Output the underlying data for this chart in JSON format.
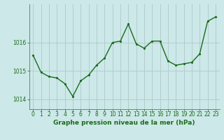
{
  "x": [
    0,
    1,
    2,
    3,
    4,
    5,
    6,
    7,
    8,
    9,
    10,
    11,
    12,
    13,
    14,
    15,
    16,
    17,
    18,
    19,
    20,
    21,
    22,
    23
  ],
  "y": [
    1015.55,
    1014.95,
    1014.8,
    1014.75,
    1014.55,
    1014.1,
    1014.65,
    1014.85,
    1015.2,
    1015.45,
    1016.0,
    1016.05,
    1016.65,
    1015.95,
    1015.8,
    1016.05,
    1016.05,
    1015.35,
    1015.2,
    1015.25,
    1015.3,
    1015.6,
    1016.75,
    1016.9
  ],
  "line_color": "#1a6b1a",
  "marker_color": "#1a6b1a",
  "bg_color": "#cce8e8",
  "grid_color": "#b0c8c8",
  "xlabel": "Graphe pression niveau de la mer (hPa)",
  "ylim": [
    1013.65,
    1017.35
  ],
  "yticks": [
    1014,
    1015,
    1016
  ],
  "xticks": [
    0,
    1,
    2,
    3,
    4,
    5,
    6,
    7,
    8,
    9,
    10,
    11,
    12,
    13,
    14,
    15,
    16,
    17,
    18,
    19,
    20,
    21,
    22,
    23
  ],
  "xlabel_fontsize": 6.5,
  "tick_fontsize": 5.5,
  "marker_size": 2.5,
  "line_width": 1.0
}
